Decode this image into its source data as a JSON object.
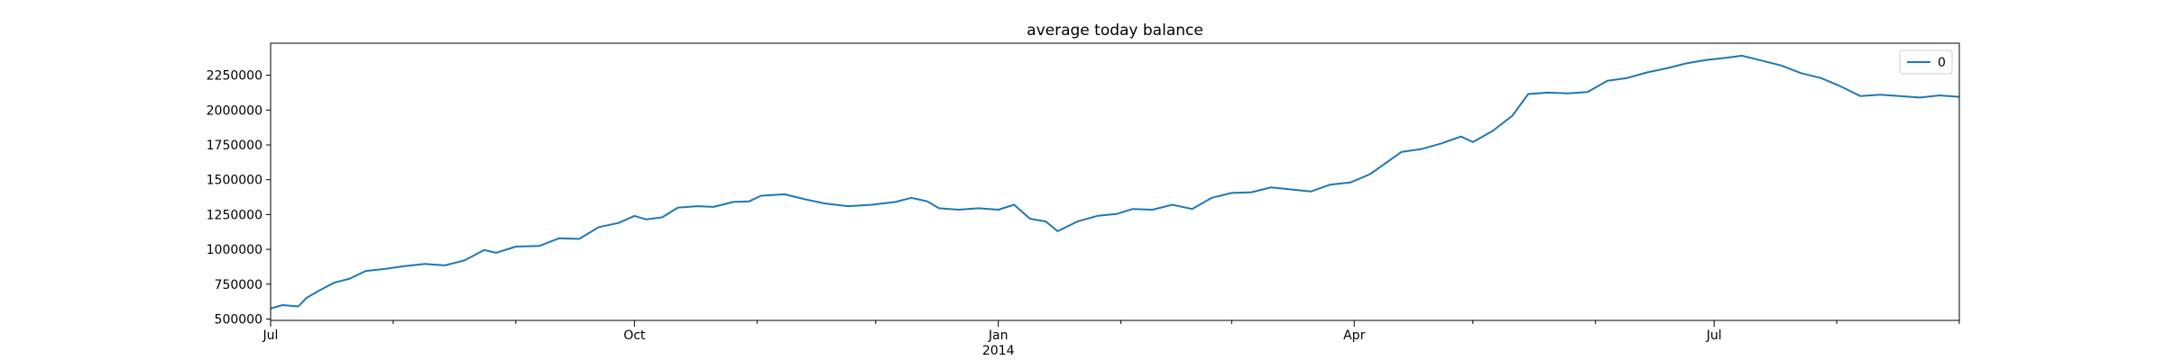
{
  "chart_data": {
    "type": "line",
    "title": "average today balance",
    "xlabel": "",
    "ylabel": "",
    "x_range": [
      "2013-07-01",
      "2014-09-01"
    ],
    "ylim": [
      490000,
      2480000
    ],
    "y_ticks": [
      500000,
      750000,
      1000000,
      1250000,
      1500000,
      1750000,
      2000000,
      2250000
    ],
    "y_tick_labels": [
      "500000",
      "750000",
      "1000000",
      "1250000",
      "1500000",
      "1750000",
      "2000000",
      "2250000"
    ],
    "x_major_ticks": [
      {
        "date": "2013-07-01",
        "label": "Jul",
        "sublabel": ""
      },
      {
        "date": "2013-10-01",
        "label": "Oct",
        "sublabel": ""
      },
      {
        "date": "2014-01-01",
        "label": "Jan",
        "sublabel": "2014"
      },
      {
        "date": "2014-04-01",
        "label": "Apr",
        "sublabel": ""
      },
      {
        "date": "2014-07-01",
        "label": "Jul",
        "sublabel": ""
      }
    ],
    "x_minor_ticks": [
      "2013-08-01",
      "2013-09-01",
      "2013-11-01",
      "2013-12-01",
      "2014-02-01",
      "2014-03-01",
      "2014-05-01",
      "2014-06-01",
      "2014-08-01",
      "2014-09-01"
    ],
    "grid": false,
    "legend": {
      "position": "top-right",
      "entries": [
        "0"
      ]
    },
    "series": [
      {
        "name": "0",
        "color": "#1f77b4",
        "points": [
          [
            "2013-07-01",
            575000
          ],
          [
            "2013-07-04",
            600000
          ],
          [
            "2013-07-08",
            590000
          ],
          [
            "2013-07-10",
            650000
          ],
          [
            "2013-07-13",
            700000
          ],
          [
            "2013-07-17",
            760000
          ],
          [
            "2013-07-21",
            790000
          ],
          [
            "2013-07-25",
            845000
          ],
          [
            "2013-07-30",
            860000
          ],
          [
            "2013-08-04",
            880000
          ],
          [
            "2013-08-09",
            895000
          ],
          [
            "2013-08-14",
            885000
          ],
          [
            "2013-08-19",
            920000
          ],
          [
            "2013-08-24",
            995000
          ],
          [
            "2013-08-27",
            975000
          ],
          [
            "2013-09-01",
            1020000
          ],
          [
            "2013-09-07",
            1025000
          ],
          [
            "2013-09-12",
            1080000
          ],
          [
            "2013-09-17",
            1075000
          ],
          [
            "2013-09-22",
            1160000
          ],
          [
            "2013-09-27",
            1190000
          ],
          [
            "2013-10-01",
            1240000
          ],
          [
            "2013-10-04",
            1215000
          ],
          [
            "2013-10-08",
            1230000
          ],
          [
            "2013-10-12",
            1300000
          ],
          [
            "2013-10-17",
            1310000
          ],
          [
            "2013-10-21",
            1305000
          ],
          [
            "2013-10-26",
            1340000
          ],
          [
            "2013-10-30",
            1345000
          ],
          [
            "2013-11-02",
            1385000
          ],
          [
            "2013-11-08",
            1395000
          ],
          [
            "2013-11-13",
            1360000
          ],
          [
            "2013-11-18",
            1330000
          ],
          [
            "2013-11-24",
            1310000
          ],
          [
            "2013-11-30",
            1320000
          ],
          [
            "2013-12-06",
            1340000
          ],
          [
            "2013-12-10",
            1370000
          ],
          [
            "2013-12-14",
            1345000
          ],
          [
            "2013-12-17",
            1295000
          ],
          [
            "2013-12-22",
            1285000
          ],
          [
            "2013-12-27",
            1295000
          ],
          [
            "2014-01-01",
            1285000
          ],
          [
            "2014-01-05",
            1320000
          ],
          [
            "2014-01-09",
            1220000
          ],
          [
            "2014-01-13",
            1200000
          ],
          [
            "2014-01-16",
            1130000
          ],
          [
            "2014-01-21",
            1200000
          ],
          [
            "2014-01-26",
            1240000
          ],
          [
            "2014-01-31",
            1255000
          ],
          [
            "2014-02-04",
            1290000
          ],
          [
            "2014-02-09",
            1285000
          ],
          [
            "2014-02-14",
            1320000
          ],
          [
            "2014-02-19",
            1290000
          ],
          [
            "2014-02-24",
            1370000
          ],
          [
            "2014-03-01",
            1405000
          ],
          [
            "2014-03-06",
            1410000
          ],
          [
            "2014-03-11",
            1445000
          ],
          [
            "2014-03-16",
            1430000
          ],
          [
            "2014-03-21",
            1415000
          ],
          [
            "2014-03-26",
            1465000
          ],
          [
            "2014-03-31",
            1480000
          ],
          [
            "2014-04-05",
            1540000
          ],
          [
            "2014-04-09",
            1620000
          ],
          [
            "2014-04-13",
            1700000
          ],
          [
            "2014-04-18",
            1720000
          ],
          [
            "2014-04-23",
            1760000
          ],
          [
            "2014-04-28",
            1810000
          ],
          [
            "2014-05-01",
            1770000
          ],
          [
            "2014-05-06",
            1850000
          ],
          [
            "2014-05-11",
            1960000
          ],
          [
            "2014-05-15",
            2115000
          ],
          [
            "2014-05-20",
            2125000
          ],
          [
            "2014-05-25",
            2120000
          ],
          [
            "2014-05-30",
            2130000
          ],
          [
            "2014-06-04",
            2210000
          ],
          [
            "2014-06-09",
            2230000
          ],
          [
            "2014-06-14",
            2270000
          ],
          [
            "2014-06-19",
            2300000
          ],
          [
            "2014-06-24",
            2335000
          ],
          [
            "2014-06-29",
            2360000
          ],
          [
            "2014-07-04",
            2375000
          ],
          [
            "2014-07-08",
            2390000
          ],
          [
            "2014-07-13",
            2355000
          ],
          [
            "2014-07-18",
            2320000
          ],
          [
            "2014-07-23",
            2265000
          ],
          [
            "2014-07-28",
            2230000
          ],
          [
            "2014-08-02",
            2170000
          ],
          [
            "2014-08-07",
            2100000
          ],
          [
            "2014-08-12",
            2110000
          ],
          [
            "2014-08-17",
            2100000
          ],
          [
            "2014-08-22",
            2090000
          ],
          [
            "2014-08-27",
            2105000
          ],
          [
            "2014-09-01",
            2095000
          ]
        ]
      }
    ]
  }
}
